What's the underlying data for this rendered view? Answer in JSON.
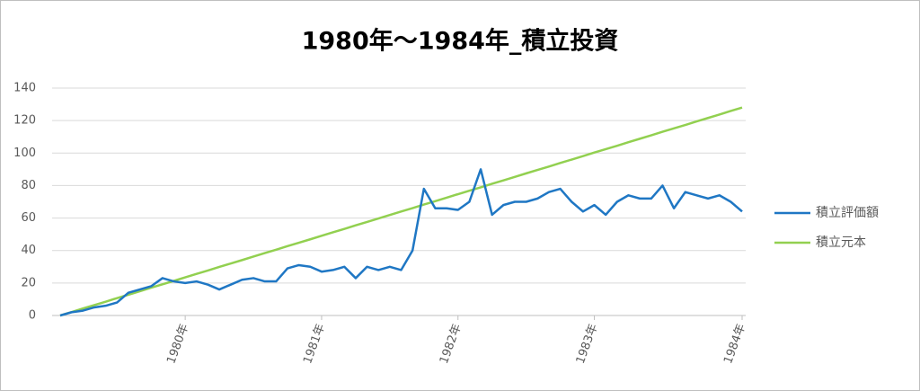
{
  "chart_data": {
    "type": "line",
    "title": "1980年～1984年_積立投資",
    "categories": [
      null,
      null,
      null,
      null,
      null,
      null,
      null,
      null,
      null,
      null,
      null,
      "1980年",
      null,
      null,
      null,
      null,
      null,
      null,
      null,
      null,
      null,
      null,
      null,
      "1981年",
      null,
      null,
      null,
      null,
      null,
      null,
      null,
      null,
      null,
      null,
      null,
      "1982年",
      null,
      null,
      null,
      null,
      null,
      null,
      null,
      null,
      null,
      null,
      null,
      "1983年",
      null,
      null,
      null,
      null,
      null,
      null,
      null,
      null,
      null,
      null,
      null,
      null,
      "1984年"
    ],
    "series": [
      {
        "name": "積立評価額",
        "color": "#1f77c4",
        "values": [
          0,
          2,
          3,
          5,
          6,
          8,
          14,
          16,
          18,
          23,
          21,
          20,
          21,
          19,
          16,
          19,
          22,
          23,
          21,
          21,
          29,
          31,
          30,
          27,
          28,
          30,
          23,
          30,
          28,
          30,
          28,
          40,
          78,
          66,
          66,
          65,
          70,
          90,
          62,
          68,
          70,
          70,
          72,
          76,
          78,
          70,
          64,
          68,
          62,
          70,
          74,
          72,
          72,
          80,
          66,
          76,
          74,
          72,
          74,
          70,
          64
        ]
      },
      {
        "name": "積立元本",
        "color": "#92d050",
        "values": [
          0,
          2.1,
          4.3,
          6.4,
          8.5,
          10.7,
          12.8,
          14.9,
          17.1,
          19.2,
          21.3,
          23.5,
          25.6,
          27.7,
          29.9,
          32,
          34.1,
          36.3,
          38.4,
          40.5,
          42.7,
          44.8,
          46.9,
          49.1,
          51.2,
          53.3,
          55.5,
          57.6,
          59.7,
          61.9,
          64,
          66.1,
          68.3,
          70.4,
          72.5,
          74.7,
          76.8,
          78.9,
          81.1,
          83.2,
          85.3,
          87.5,
          89.6,
          91.7,
          93.9,
          96,
          98.1,
          100.3,
          102.4,
          104.5,
          106.7,
          108.8,
          110.9,
          113.1,
          115.2,
          117.3,
          119.5,
          121.6,
          123.7,
          125.9,
          128
        ]
      }
    ],
    "ylim": [
      0,
      140
    ],
    "yticks": [
      0,
      20,
      40,
      60,
      80,
      100,
      120,
      140
    ],
    "grid": true,
    "legend": "right"
  }
}
